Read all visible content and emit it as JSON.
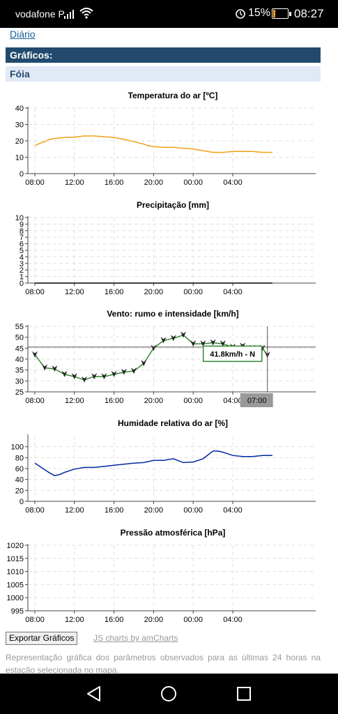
{
  "status_bar": {
    "carrier": "vodafone P",
    "battery_percent": "15%",
    "battery_level": 0.15,
    "time": "08:27"
  },
  "nav": {
    "diario_link": "Diário"
  },
  "section": {
    "title": "Gráficos:"
  },
  "station": {
    "name": "Fóia"
  },
  "chart_data": [
    {
      "type": "line",
      "title": "Temperatura do ar [ºC]",
      "x_ticks": [
        "08:00",
        "12:00",
        "16:00",
        "20:00",
        "00:00",
        "04:00"
      ],
      "y_ticks": [
        "0",
        "10",
        "20",
        "30",
        "40"
      ],
      "ylim": [
        0,
        40
      ],
      "grid": true,
      "series": [
        {
          "color": "#f2a016",
          "x": [
            0,
            0.5,
            1,
            1.5,
            2,
            3,
            4,
            5,
            6,
            7,
            8,
            9,
            10,
            11,
            11.5,
            12,
            13,
            14,
            15,
            16,
            17,
            18,
            19,
            20,
            21,
            22,
            23,
            24
          ],
          "y": [
            17,
            18.5,
            19.5,
            21,
            21.5,
            22,
            22.3,
            23,
            23,
            22.5,
            22,
            21,
            19.5,
            18,
            17,
            16.5,
            16,
            16,
            15.5,
            15,
            14,
            13,
            13,
            13.5,
            13.5,
            13.5,
            13,
            13
          ]
        }
      ]
    },
    {
      "type": "line",
      "title": "Precipitação [mm]",
      "x_ticks": [
        "08:00",
        "12:00",
        "16:00",
        "20:00",
        "00:00",
        "04:00"
      ],
      "y_ticks": [
        "0",
        "1",
        "2",
        "3",
        "4",
        "5",
        "6",
        "7",
        "8",
        "9",
        "10"
      ],
      "ylim": [
        0,
        10
      ],
      "grid": true,
      "series": [
        {
          "color": "#000000",
          "x": [
            0,
            24
          ],
          "y": [
            0,
            0
          ]
        }
      ]
    },
    {
      "type": "line",
      "title": "Vento: rumo e intensidade [km/h]",
      "x_ticks": [
        "08:00",
        "12:00",
        "16:00",
        "20:00",
        "00:00",
        "04:00"
      ],
      "y_ticks": [
        "25",
        "30",
        "35",
        "40",
        "45",
        "50",
        "55"
      ],
      "ylim": [
        25,
        55
      ],
      "grid": true,
      "series": [
        {
          "color": "#338833",
          "x": [
            0,
            1,
            2,
            3,
            4,
            5,
            6,
            7,
            8,
            9,
            10,
            11,
            12,
            13,
            14,
            15,
            16,
            17,
            18,
            19,
            20,
            21,
            22,
            23,
            23.5
          ],
          "y": [
            42,
            36,
            35.5,
            33,
            32,
            30.5,
            32,
            32,
            33,
            34,
            34.5,
            38,
            45,
            48.5,
            49.5,
            51,
            47,
            47,
            47.5,
            47,
            45.5,
            46,
            45,
            45,
            41.8
          ]
        }
      ],
      "tooltip": "41.8km/h - N",
      "cursor_label": "07:00"
    },
    {
      "type": "line",
      "title": "Humidade relativa do ar [%]",
      "x_ticks": [
        "08:00",
        "12:00",
        "16:00",
        "20:00",
        "00:00",
        "04:00"
      ],
      "y_ticks": [
        "0",
        "20",
        "40",
        "60",
        "80",
        "100"
      ],
      "ylim": [
        0,
        120
      ],
      "grid": true,
      "series": [
        {
          "color": "#002a9e",
          "x": [
            0,
            0.5,
            1,
            1.5,
            2,
            2.5,
            3,
            3.5,
            4,
            5,
            6,
            7,
            8,
            9,
            10,
            11,
            12,
            13,
            14,
            15,
            16,
            17,
            18,
            18.5,
            19,
            20,
            21,
            22,
            23,
            24
          ],
          "y": [
            70,
            64,
            58,
            52,
            47,
            49,
            53,
            56,
            59,
            62,
            62,
            64,
            66,
            68,
            70,
            71,
            75,
            75,
            78,
            71,
            72,
            78,
            92,
            92,
            90,
            84,
            82,
            82,
            84,
            84
          ]
        }
      ]
    },
    {
      "type": "line",
      "title": "Pressão atmosférica [hPa]",
      "x_ticks": [
        "08:00",
        "12:00",
        "16:00",
        "20:00",
        "00:00",
        "04:00"
      ],
      "y_ticks": [
        "995",
        "1000",
        "1005",
        "1010",
        "1015",
        "1020"
      ],
      "ylim": [
        995,
        1020
      ],
      "grid": true,
      "series": []
    }
  ],
  "footer": {
    "export_button": "Exportar Gráficos",
    "credit_link": "JS charts by amCharts",
    "note": "Representação gráfica dos parâmetros observados para as últimas 24 horas na estação selecionada no mapa."
  },
  "colors": {
    "header_bg": "#224a6e",
    "station_bg": "#e1e9f5",
    "link": "#1a5d97"
  }
}
